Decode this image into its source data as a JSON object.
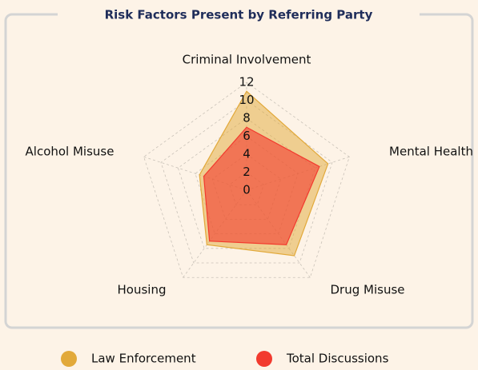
{
  "chart_data": {
    "type": "radar",
    "title": "Risk Factors Present by Referring Party",
    "categories": [
      "Criminal Involvement",
      "Mental Health",
      "Drug Misuse",
      "Housing",
      "Alcohol Misuse"
    ],
    "series": [
      {
        "name": "Law Enforcement",
        "color": "#e2a93a",
        "values": [
          11,
          9.5,
          9,
          7.5,
          5.5
        ]
      },
      {
        "name": "Total Discussions",
        "color": "#f23a2e",
        "values": [
          7,
          8.5,
          7.5,
          7,
          5
        ]
      }
    ],
    "rlim": [
      0,
      12
    ],
    "rticks": [
      0,
      2,
      4,
      6,
      8,
      10,
      12
    ],
    "grid": true,
    "legend": "bottom"
  }
}
